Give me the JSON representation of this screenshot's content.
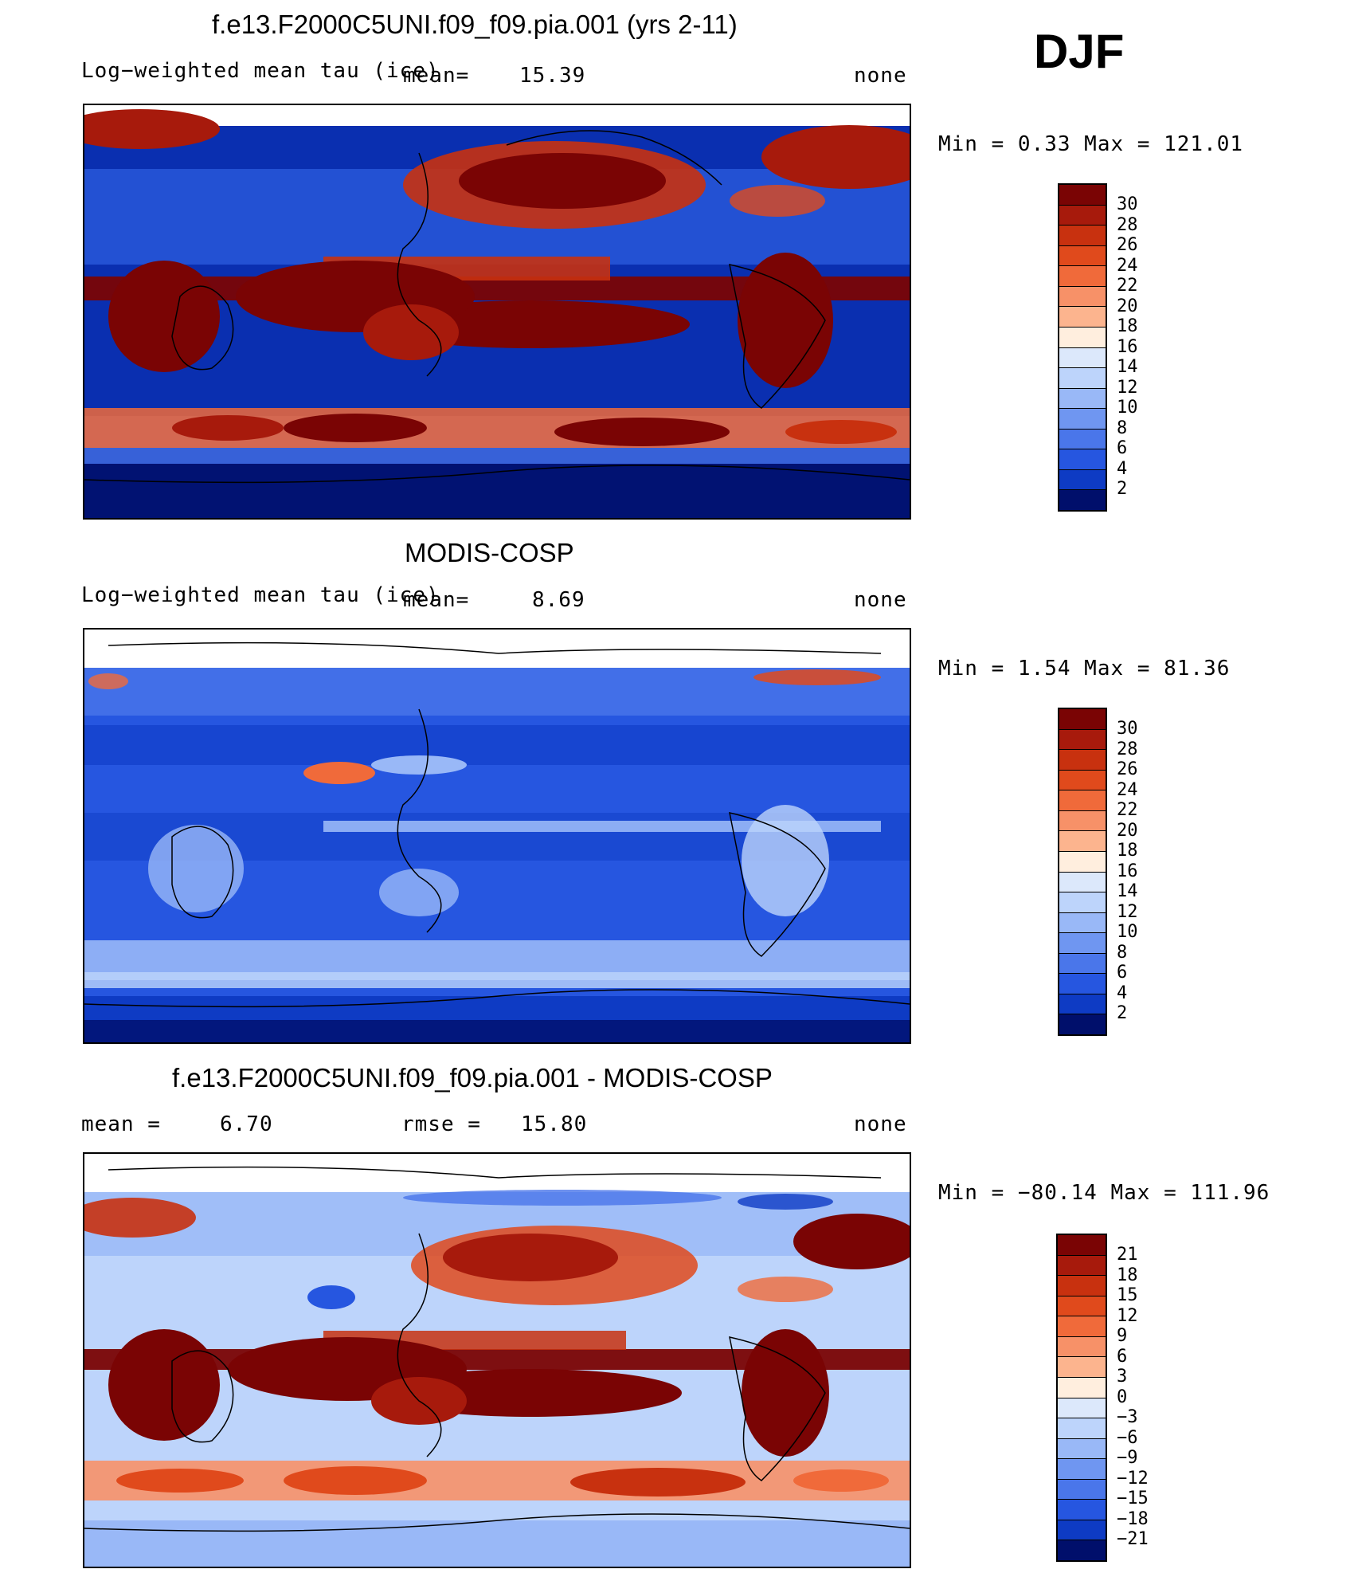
{
  "season": "DJF",
  "panels": [
    {
      "title": "f.e13.F2000C5UNI.f09_f09.pia.001 (yrs 2-11)",
      "left_text": "Log−weighted mean tau (ice)",
      "middle_label": "mean=",
      "middle_value": "15.39",
      "right_text": "none",
      "minmax": "Min =    0.33 Max = 121.01",
      "colorbar_labels": [
        "30",
        "28",
        "26",
        "24",
        "22",
        "20",
        "18",
        "16",
        "14",
        "12",
        "10",
        "8",
        "6",
        "4",
        "2"
      ]
    },
    {
      "title": "MODIS-COSP",
      "left_text": "Log−weighted mean tau (ice)",
      "middle_label": "mean=",
      "middle_value": "8.69",
      "right_text": "none",
      "minmax": "Min =    1.54 Max =   81.36",
      "colorbar_labels": [
        "30",
        "28",
        "26",
        "24",
        "22",
        "20",
        "18",
        "16",
        "14",
        "12",
        "10",
        "8",
        "6",
        "4",
        "2"
      ]
    },
    {
      "title": "f.e13.F2000C5UNI.f09_f09.pia.001 - MODIS-COSP",
      "left_label": "mean =",
      "left_value": "6.70",
      "middle_label": "rmse =",
      "middle_value": "15.80",
      "right_text": "none",
      "minmax": "Min = −80.14 Max = 111.96",
      "colorbar_labels": [
        "21",
        "18",
        "15",
        "12",
        "9",
        "6",
        "3",
        "0",
        "−3",
        "−6",
        "−9",
        "−12",
        "−15",
        "−18",
        "−21"
      ]
    }
  ],
  "colors": {
    "seq": [
      "#7a0404",
      "#a71a0c",
      "#c8310f",
      "#e04a1c",
      "#f06a3a",
      "#f79168",
      "#fcb48e",
      "#ffd9bf",
      "#ffeede",
      "#dce8fb",
      "#bdd4fb",
      "#99b8f7",
      "#6f96f1",
      "#4a76ea",
      "#2656e0",
      "#0e3bc4",
      "#06209a",
      "#000f6b"
    ],
    "diff": [
      "#7a0404",
      "#a71a0c",
      "#c8310f",
      "#e04a1c",
      "#f06a3a",
      "#f79168",
      "#fcb48e",
      "#ffd9bf",
      "#ffeede",
      "#dce8fb",
      "#bdd4fb",
      "#99b8f7",
      "#6f96f1",
      "#4a76ea",
      "#2656e0",
      "#0e3bc4",
      "#06209a",
      "#000f6b"
    ]
  }
}
